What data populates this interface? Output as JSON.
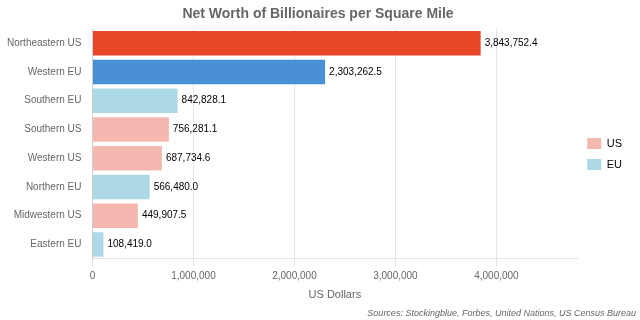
{
  "chart_data": {
    "type": "bar",
    "orientation": "horizontal",
    "title": "Net Worth of Billionaires per Square Mile",
    "xlabel": "US Dollars",
    "annotations": [
      "Sources: Stockingblue, Forbes, United Nations, US Census Bureau"
    ],
    "categories": [
      "Northeastern US",
      "Western EU",
      "Southern EU",
      "Southern US",
      "Western US",
      "Northern EU",
      "Midwestern US",
      "Eastern EU"
    ],
    "series": [
      {
        "name": "US",
        "color": "#f4b8b0",
        "colors": [
          "#e8472a",
          null,
          null,
          "#f4b8b0",
          "#f4b8b0",
          null,
          "#f4b8b0",
          null
        ],
        "values": [
          3843752.4,
          null,
          null,
          756281.1,
          687734.6,
          null,
          449907.5,
          null
        ],
        "value_labels": [
          "3,843,752.4",
          null,
          null,
          "756,281.1",
          "687,734.6",
          null,
          "449,907.5",
          null
        ]
      },
      {
        "name": "EU",
        "color": "#add8e6",
        "colors": [
          null,
          "#4a90d9",
          "#add8e6",
          null,
          null,
          "#add8e6",
          null,
          "#add8e6"
        ],
        "values": [
          null,
          2303262.5,
          842828.1,
          null,
          null,
          566480.0,
          null,
          108419.0
        ],
        "value_labels": [
          null,
          "2,303,262.5",
          "842,828.1",
          null,
          null,
          "566,480.0",
          null,
          "108,419.0"
        ]
      }
    ],
    "xlim": [
      0,
      4800000
    ],
    "xticks": [
      0,
      {
        "value": 1000000,
        "label": "1,000,000"
      },
      {
        "value": 2000000,
        "label": "2,000,000"
      },
      {
        "value": 3000000,
        "label": "3,000,000"
      },
      {
        "value": 4000000,
        "label": "4,000,000"
      }
    ],
    "grid": true,
    "legend": "right",
    "data_labels": true
  }
}
